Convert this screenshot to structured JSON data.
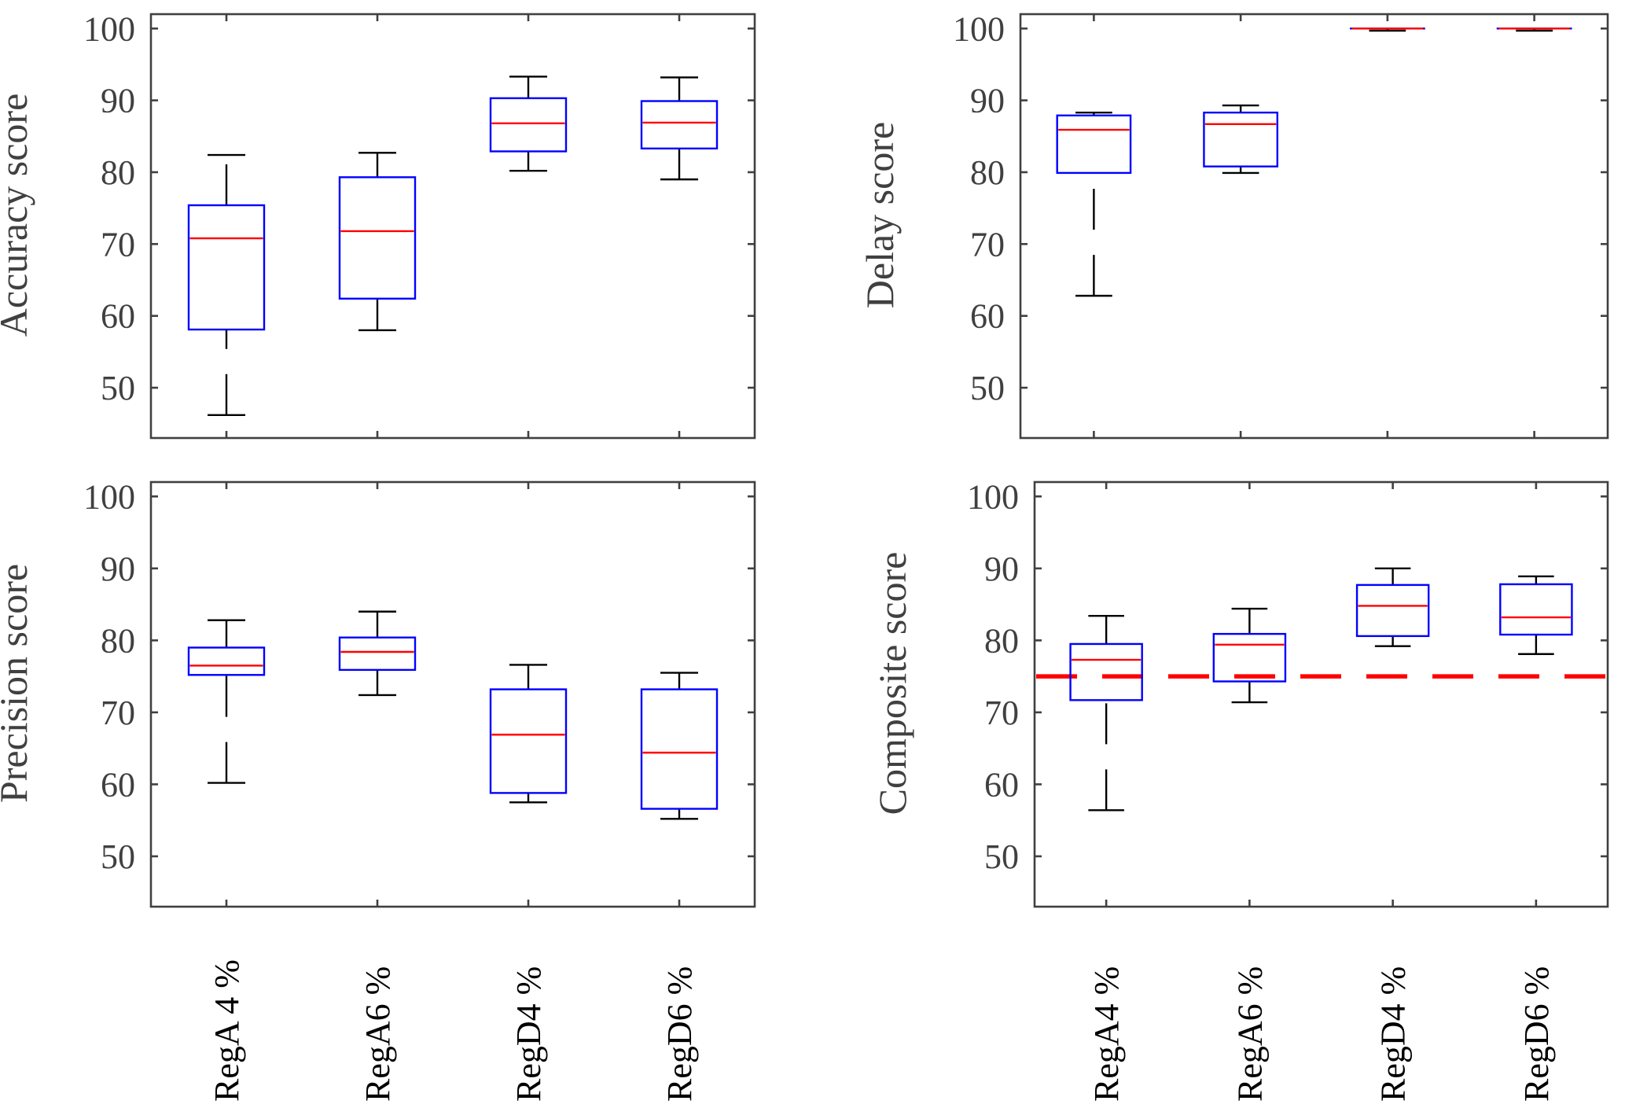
{
  "colors": {
    "box": "#0000FF",
    "median": "#FF0000",
    "whisker": "#000000",
    "reference_line": "#FF0000",
    "axis": "#404040"
  },
  "chart_data": [
    {
      "type": "box",
      "panel": "top-left",
      "ylabel": "Accuracy score",
      "xlabel": "",
      "ylim": [
        43,
        102
      ],
      "yticks": [
        50,
        60,
        70,
        80,
        90,
        100
      ],
      "categories": [],
      "show_category_labels": false,
      "boxes": [
        {
          "lower": 46.2,
          "q1": 58.1,
          "median": 70.8,
          "q3": 75.4,
          "upper": 82.4
        },
        {
          "lower": 58.0,
          "q1": 62.4,
          "median": 71.8,
          "q3": 79.3,
          "upper": 82.7
        },
        {
          "lower": 80.2,
          "q1": 82.9,
          "median": 86.8,
          "q3": 90.3,
          "upper": 93.3
        },
        {
          "lower": 79.0,
          "q1": 83.3,
          "median": 86.9,
          "q3": 89.9,
          "upper": 93.2
        }
      ],
      "reference_line": null
    },
    {
      "type": "box",
      "panel": "top-right",
      "ylabel": "Delay score",
      "xlabel": "",
      "ylim": [
        43,
        102
      ],
      "yticks": [
        50,
        60,
        70,
        80,
        90,
        100
      ],
      "categories": [],
      "show_category_labels": false,
      "boxes": [
        {
          "lower": 62.8,
          "q1": 79.9,
          "median": 85.9,
          "q3": 87.9,
          "upper": 88.3
        },
        {
          "lower": 79.9,
          "q1": 80.8,
          "median": 86.7,
          "q3": 88.3,
          "upper": 89.3
        },
        {
          "lower": 99.7,
          "q1": 100,
          "median": 100,
          "q3": 100,
          "upper": 100
        },
        {
          "lower": 99.7,
          "q1": 100,
          "median": 100,
          "q3": 100,
          "upper": 100
        }
      ],
      "reference_line": null
    },
    {
      "type": "box",
      "panel": "bottom-left",
      "ylabel": "Precision score",
      "xlabel": "",
      "ylim": [
        43,
        102
      ],
      "yticks": [
        50,
        60,
        70,
        80,
        90,
        100
      ],
      "categories": [
        "RegA 4 %",
        "RegA6 %",
        "RegD4 %",
        "RegD6 %"
      ],
      "show_category_labels": true,
      "boxes": [
        {
          "lower": 60.2,
          "q1": 75.2,
          "median": 76.5,
          "q3": 79.0,
          "upper": 82.8
        },
        {
          "lower": 72.4,
          "q1": 75.9,
          "median": 78.4,
          "q3": 80.4,
          "upper": 84.0
        },
        {
          "lower": 57.5,
          "q1": 58.8,
          "median": 66.9,
          "q3": 73.2,
          "upper": 76.6
        },
        {
          "lower": 55.2,
          "q1": 56.6,
          "median": 64.4,
          "q3": 73.2,
          "upper": 75.5
        }
      ],
      "reference_line": null
    },
    {
      "type": "box",
      "panel": "bottom-right",
      "ylabel": "Composite score",
      "xlabel": "",
      "ylim": [
        43,
        102
      ],
      "yticks": [
        50,
        60,
        70,
        80,
        90,
        100
      ],
      "categories": [
        "RegA4 %",
        "RegA6 %",
        "RegD4 %",
        "RegD6 %"
      ],
      "show_category_labels": true,
      "boxes": [
        {
          "lower": 56.4,
          "q1": 71.7,
          "median": 77.3,
          "q3": 79.5,
          "upper": 83.4
        },
        {
          "lower": 71.4,
          "q1": 74.3,
          "median": 79.4,
          "q3": 80.9,
          "upper": 84.4
        },
        {
          "lower": 79.2,
          "q1": 80.6,
          "median": 84.8,
          "q3": 87.7,
          "upper": 90.0
        },
        {
          "lower": 78.1,
          "q1": 80.8,
          "median": 83.2,
          "q3": 87.8,
          "upper": 88.9
        }
      ],
      "reference_line": {
        "value": 75,
        "style": "dashed"
      }
    }
  ]
}
